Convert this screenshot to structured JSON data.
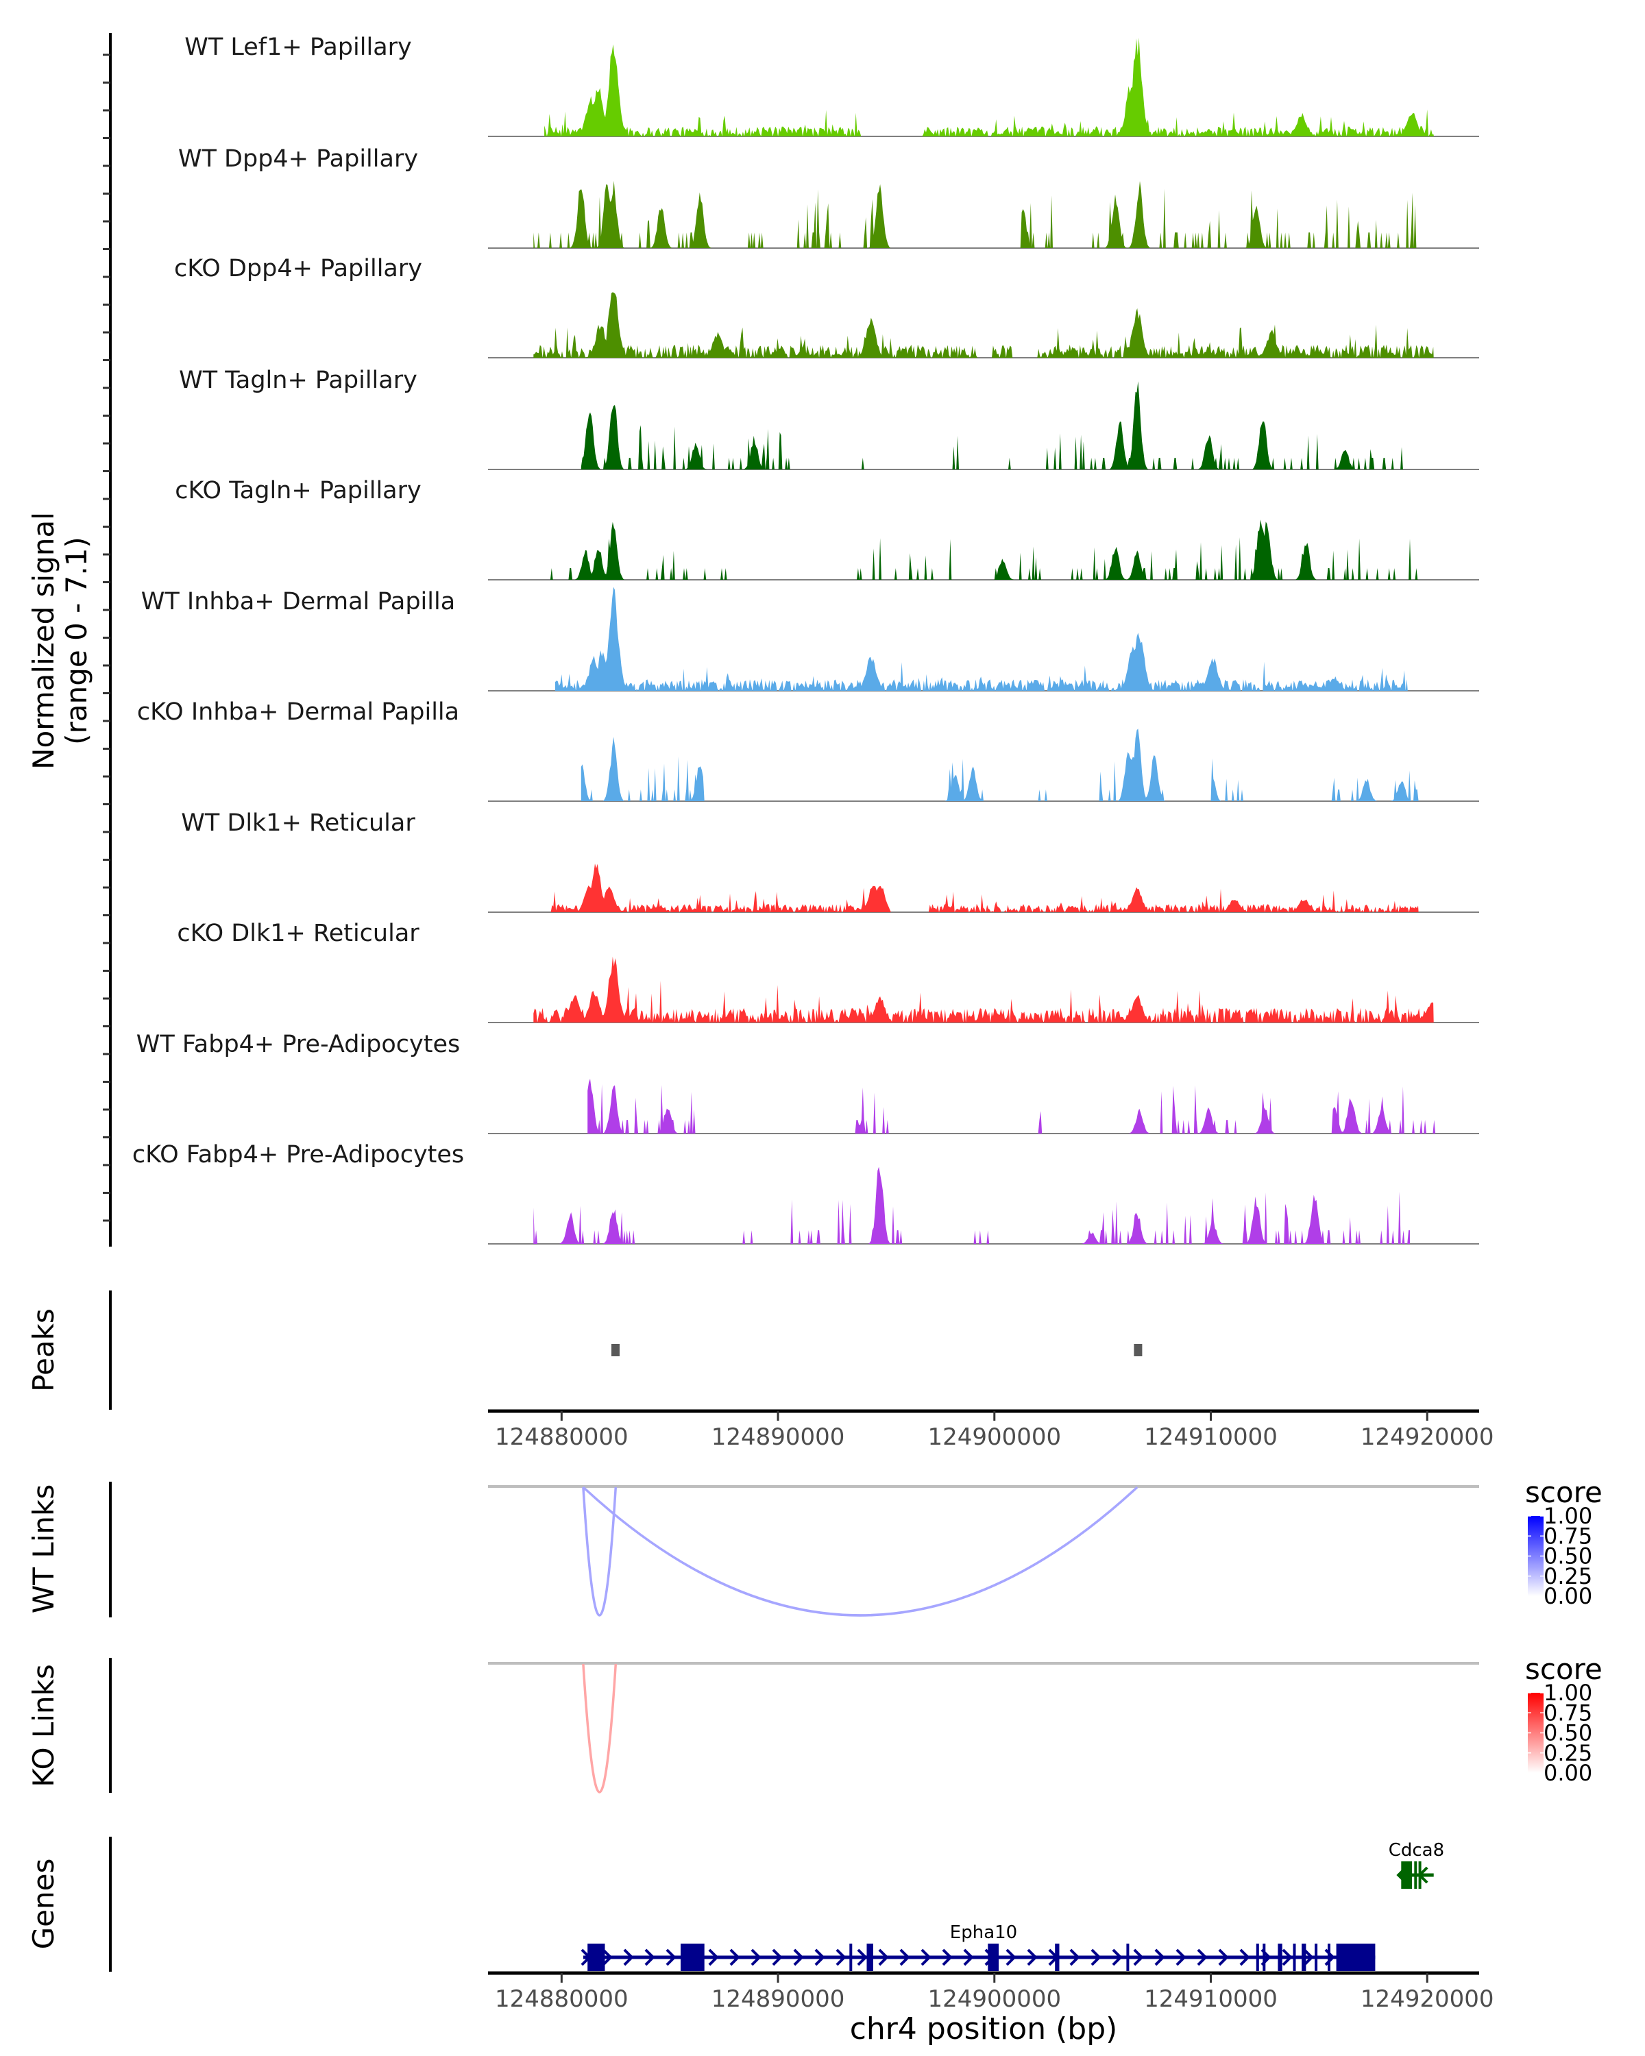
{
  "chart_data": {
    "type": "area",
    "title": "",
    "xlabel": "chr4 position (bp)",
    "x_range": [
      124876600,
      124922400
    ],
    "x_ticks": [
      124880000,
      124890000,
      124900000,
      124910000,
      124920000
    ],
    "x_tick_labels": [
      "124880000",
      "124890000",
      "124900000",
      "124910000",
      "124920000"
    ],
    "signal": {
      "ylabel_line1": "Normalized signal",
      "ylabel_line2": "(range 0 - 7.1)",
      "ylim": [
        0,
        7.1
      ],
      "tracks": [
        {
          "name": "WT Lef1+ Papillary",
          "color": "#66CC00",
          "style": "dense",
          "span": [
            124879200,
            124920300
          ],
          "gaps": [
            [
              124893800,
              124896700
            ]
          ],
          "peaks": [
            [
              124882400,
              7.0
            ],
            [
              124881700,
              3.5
            ],
            [
              124881350,
              2.8
            ],
            [
              124894500,
              2.5
            ],
            [
              124906600,
              7.1
            ],
            [
              124906300,
              3.8
            ],
            [
              124914200,
              1.6
            ],
            [
              124919300,
              1.8
            ]
          ],
          "baseline": 0.6
        },
        {
          "name": "WT Dpp4+ Papillary",
          "color": "#4D8F00",
          "style": "sparse",
          "span": [
            124878700,
            124920100
          ],
          "gaps": [
            [
              124895200,
              124901200
            ]
          ],
          "peaks": [
            [
              124880900,
              4.6
            ],
            [
              124882400,
              4.6
            ],
            [
              124882100,
              4.6
            ],
            [
              124884600,
              3.3
            ],
            [
              124886400,
              3.8
            ],
            [
              124894700,
              4.6
            ],
            [
              124906700,
              4.6
            ],
            [
              124905600,
              3.9
            ],
            [
              124901300,
              3.1
            ],
            [
              124912100,
              3.1
            ]
          ],
          "baseline": 0.8
        },
        {
          "name": "cKO Dpp4+ Papillary",
          "color": "#4D8F00",
          "style": "dense",
          "span": [
            124878700,
            124920300
          ],
          "gaps": [
            [
              124899200,
              124899900
            ],
            [
              124900800,
              124902000
            ]
          ],
          "peaks": [
            [
              124882400,
              5.0
            ],
            [
              124881800,
              2.5
            ],
            [
              124894300,
              2.7
            ],
            [
              124906600,
              3.5
            ],
            [
              124912800,
              1.9
            ],
            [
              124887200,
              1.8
            ]
          ],
          "baseline": 0.8
        },
        {
          "name": "WT Tagln+ Papillary",
          "color": "#006400",
          "style": "sparse",
          "span": [
            124880900,
            124919100
          ],
          "gaps": [
            [
              124890700,
              124893600
            ],
            [
              124894200,
              124897700
            ],
            [
              124898400,
              124900300
            ]
          ],
          "peaks": [
            [
              124881300,
              4.5
            ],
            [
              124882400,
              5.3
            ],
            [
              124886200,
              2.0
            ],
            [
              124888900,
              2.3
            ],
            [
              124906600,
              6.1
            ],
            [
              124905800,
              3.6
            ],
            [
              124909900,
              2.6
            ],
            [
              124912400,
              3.9
            ],
            [
              124916200,
              1.6
            ]
          ],
          "baseline": 0.6
        },
        {
          "name": "cKO Tagln+ Papillary",
          "color": "#006400",
          "style": "sparse",
          "span": [
            124879000,
            124919900
          ],
          "gaps": [
            [
              124882900,
              124883500
            ],
            [
              124887600,
              124893500
            ],
            [
              124898300,
              124900000
            ]
          ],
          "peaks": [
            [
              124882400,
              4.4
            ],
            [
              124881100,
              2.1
            ],
            [
              124881700,
              2.6
            ],
            [
              124906600,
              2.1
            ],
            [
              124905600,
              2.5
            ],
            [
              124912300,
              4.6
            ],
            [
              124912600,
              4.2
            ],
            [
              124914400,
              2.9
            ],
            [
              124900400,
              1.6
            ]
          ],
          "baseline": 0.6
        },
        {
          "name": "WT Inhba+ Dermal Papilla",
          "color": "#5AAAE8",
          "style": "dense",
          "span": [
            124879700,
            124919100
          ],
          "gaps": [],
          "peaks": [
            [
              124882400,
              7.1
            ],
            [
              124881900,
              3.0
            ],
            [
              124881500,
              2.4
            ],
            [
              124894300,
              2.6
            ],
            [
              124906700,
              4.3
            ],
            [
              124906400,
              3.4
            ],
            [
              124910100,
              2.4
            ],
            [
              124915700,
              1.0
            ]
          ],
          "baseline": 0.7
        },
        {
          "name": "cKO Inhba+ Dermal Papilla",
          "color": "#5AAAE8",
          "style": "sparse",
          "span": [
            124880900,
            124919800
          ],
          "gaps": [
            [
              124886600,
              124897600
            ],
            [
              124899600,
              124902000
            ],
            [
              124902600,
              124904500
            ],
            [
              124908100,
              124910000
            ],
            [
              124911500,
              124915300
            ]
          ],
          "peaks": [
            [
              124880900,
              2.9
            ],
            [
              124882400,
              4.3
            ],
            [
              124886400,
              2.9
            ],
            [
              124898200,
              2.0
            ],
            [
              124899000,
              2.4
            ],
            [
              124906600,
              5.6
            ],
            [
              124906200,
              4.2
            ],
            [
              124907400,
              3.4
            ],
            [
              124910000,
              2.6
            ],
            [
              124917200,
              1.6
            ],
            [
              124918800,
              1.5
            ]
          ],
          "baseline": 0.6
        },
        {
          "name": "WT Dlk1+ Reticular",
          "color": "#FF3333",
          "style": "dense",
          "span": [
            124879500,
            124919600
          ],
          "gaps": [
            [
              124895200,
              124897000
            ]
          ],
          "peaks": [
            [
              124881600,
              3.4
            ],
            [
              124881300,
              2.1
            ],
            [
              124882200,
              1.8
            ],
            [
              124894700,
              2.1
            ],
            [
              124894400,
              2.0
            ],
            [
              124906600,
              1.7
            ],
            [
              124911100,
              1.0
            ],
            [
              124914300,
              1.0
            ]
          ],
          "baseline": 0.5
        },
        {
          "name": "cKO Dlk1+ Reticular",
          "color": "#FF3333",
          "style": "dense",
          "span": [
            124878700,
            124920300
          ],
          "gaps": [],
          "peaks": [
            [
              124882400,
              4.7
            ],
            [
              124881500,
              2.3
            ],
            [
              124880600,
              2.0
            ],
            [
              124894700,
              1.9
            ],
            [
              124906600,
              2.0
            ],
            [
              124920200,
              1.5
            ]
          ],
          "baseline": 0.9
        },
        {
          "name": "WT Fabp4+ Pre-Adipocytes",
          "color": "#B03EE8",
          "style": "sparse",
          "span": [
            124881200,
            124920400
          ],
          "gaps": [
            [
              124886700,
              124893600
            ],
            [
              124896200,
              124901900
            ],
            [
              124902200,
              124906200
            ],
            [
              124913000,
              124915600
            ]
          ],
          "peaks": [
            [
              124881300,
              4.2
            ],
            [
              124882400,
              3.5
            ],
            [
              124884900,
              2.1
            ],
            [
              124893700,
              0.8
            ],
            [
              124906700,
              1.7
            ],
            [
              124909900,
              1.8
            ],
            [
              124912500,
              1.8
            ],
            [
              124916500,
              2.7
            ],
            [
              124917900,
              1.8
            ],
            [
              124915700,
              1.9
            ]
          ],
          "baseline": 0.7
        },
        {
          "name": "cKO Fabp4+ Pre-Adipocytes",
          "color": "#B03EE8",
          "style": "sparse",
          "span": [
            124878700,
            124919200
          ],
          "gaps": [
            [
              124883500,
              124888300
            ],
            [
              124895800,
              124898300
            ],
            [
              124900100,
              124903400
            ]
          ],
          "peaks": [
            [
              124880400,
              2.3
            ],
            [
              124882400,
              2.7
            ],
            [
              124894700,
              6.1
            ],
            [
              124906600,
              2.3
            ],
            [
              124912100,
              3.3
            ],
            [
              124914800,
              3.5
            ],
            [
              124904500,
              0.9
            ],
            [
              124910100,
              1.6
            ]
          ],
          "baseline": 0.7
        }
      ]
    },
    "peaks": {
      "label": "Peaks",
      "color": "#595959",
      "regions": [
        [
          124882300,
          124882650
        ],
        [
          124906450,
          124906800
        ]
      ]
    },
    "wt_links": {
      "label": "WT Links",
      "links": [
        {
          "start": 124881000,
          "end": 124882500,
          "score": 0.3
        },
        {
          "start": 124881000,
          "end": 124906600,
          "score": 0.3
        }
      ],
      "legend": {
        "title": "score",
        "low": "#FFFFFF",
        "high": "#0000FF",
        "ticks": [
          "1.00",
          "0.75",
          "0.50",
          "0.25",
          "0.00"
        ],
        "range": [
          0,
          1
        ]
      }
    },
    "ko_links": {
      "label": "KO Links",
      "links": [
        {
          "start": 124881000,
          "end": 124882500,
          "score": 0.3
        }
      ],
      "legend": {
        "title": "score",
        "low": "#FFFFFF",
        "high": "#FF0000",
        "ticks": [
          "1.00",
          "0.75",
          "0.50",
          "0.25",
          "0.00"
        ],
        "range": [
          0,
          1
        ]
      }
    },
    "genes": {
      "label": "Genes",
      "items": [
        {
          "name": "Epha10",
          "strand": "+",
          "color": "#00008B",
          "start": 124881000,
          "end": 124917600,
          "row": 0,
          "exons": [
            [
              124881200,
              124882000
            ],
            [
              124885500,
              124886600
            ],
            [
              124893300,
              124893400
            ],
            [
              124894100,
              124894400
            ],
            [
              124899700,
              124900200
            ],
            [
              124902800,
              124903000
            ],
            [
              124906100,
              124906200
            ],
            [
              124912100,
              124912150
            ],
            [
              124912400,
              124912500
            ],
            [
              124913100,
              124913300
            ],
            [
              124913800,
              124913900
            ],
            [
              124914200,
              124914400
            ],
            [
              124914800,
              124914900
            ],
            [
              124915400,
              124915500
            ],
            [
              124915800,
              124917600
            ]
          ]
        },
        {
          "name": "Cdca8",
          "strand": "-",
          "color": "#006400",
          "start": 124918700,
          "end": 124920300,
          "row": 1,
          "exons": [
            [
              124918800,
              124919300
            ],
            [
              124919400,
              124919500
            ],
            [
              124919600,
              124919700
            ]
          ]
        }
      ]
    }
  }
}
